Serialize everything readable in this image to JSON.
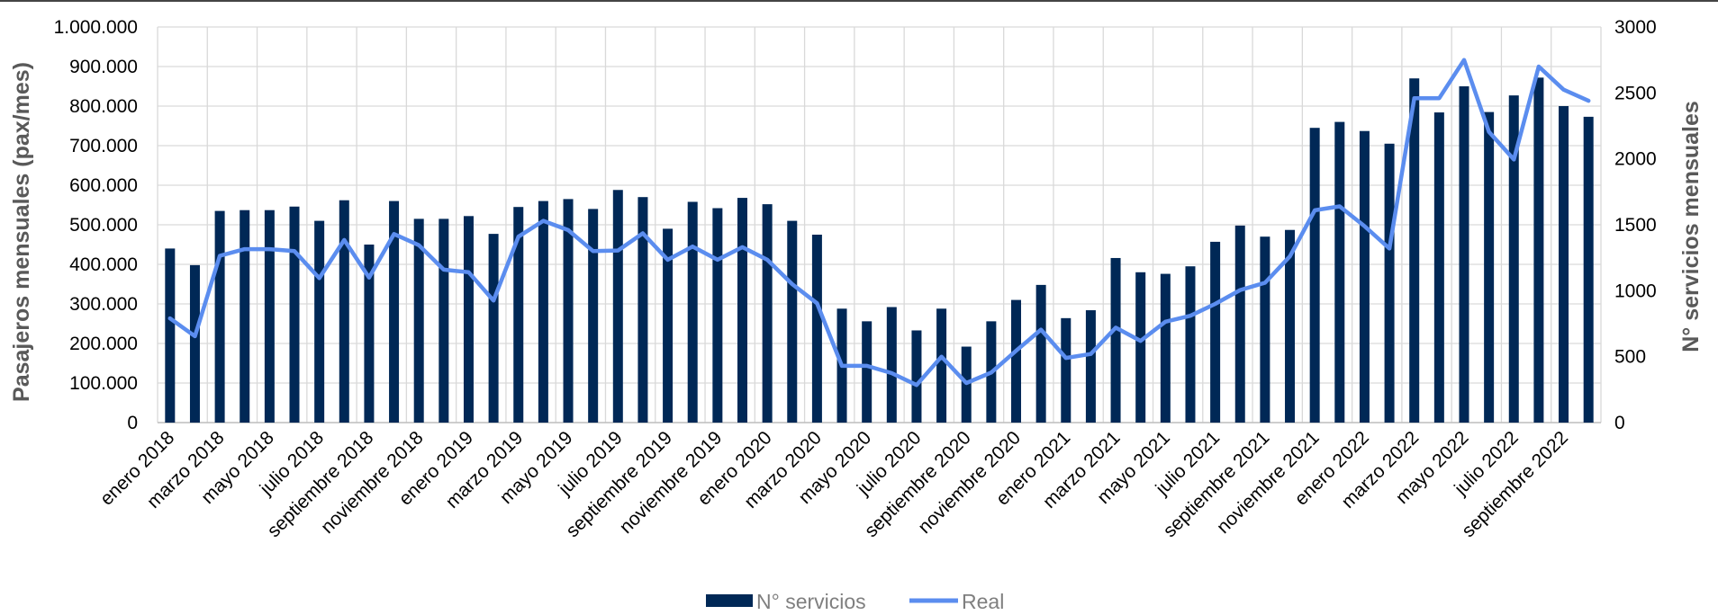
{
  "chart_data": {
    "type": "bar+line",
    "x": [
      "enero 2018",
      "febrero 2018",
      "marzo 2018",
      "abril 2018",
      "mayo 2018",
      "junio 2018",
      "julio 2018",
      "agosto 2018",
      "septiembre 2018",
      "octubre 2018",
      "noviembre 2018",
      "diciembre 2018",
      "enero 2019",
      "febrero 2019",
      "marzo 2019",
      "abril 2019",
      "mayo 2019",
      "junio 2019",
      "julio 2019",
      "agosto 2019",
      "septiembre 2019",
      "octubre 2019",
      "noviembre 2019",
      "diciembre 2019",
      "enero 2020",
      "febrero 2020",
      "marzo 2020",
      "abril 2020",
      "mayo 2020",
      "junio 2020",
      "julio 2020",
      "agosto 2020",
      "septiembre 2020",
      "octubre 2020",
      "noviembre 2020",
      "diciembre 2020",
      "enero 2021",
      "febrero 2021",
      "marzo 2021",
      "abril 2021",
      "mayo 2021",
      "junio 2021",
      "julio 2021",
      "agosto 2021",
      "septiembre 2021",
      "octubre 2021",
      "noviembre 2021",
      "diciembre 2021",
      "enero 2022",
      "febrero 2022",
      "marzo 2022",
      "abril 2022",
      "mayo 2022",
      "junio 2022",
      "julio 2022",
      "agosto 2022",
      "septiembre 2022",
      "octubre 2022"
    ],
    "x_tick_labels": [
      "enero 2018",
      "marzo 2018",
      "mayo 2018",
      "julio 2018",
      "septiembre 2018",
      "noviembre 2018",
      "enero 2019",
      "marzo 2019",
      "mayo 2019",
      "julio 2019",
      "septiembre 2019",
      "noviembre 2019",
      "enero 2020",
      "marzo 2020",
      "mayo 2020",
      "julio 2020",
      "septiembre 2020",
      "noviembre 2020",
      "enero 2021",
      "marzo 2021",
      "mayo 2021",
      "julio 2021",
      "septiembre 2021",
      "noviembre 2021",
      "enero 2022",
      "marzo 2022",
      "mayo 2022",
      "julio 2022",
      "septiembre 2022"
    ],
    "series": [
      {
        "name": "N° servicios",
        "type": "bar",
        "axis": "left",
        "color": "#002856",
        "values": [
          440000,
          398000,
          535000,
          537000,
          537000,
          546000,
          510000,
          562000,
          450000,
          560000,
          515000,
          515000,
          522000,
          477000,
          545000,
          560000,
          565000,
          540000,
          588000,
          570000,
          490000,
          558000,
          542000,
          568000,
          552000,
          510000,
          475000,
          288000,
          256000,
          292000,
          233000,
          288000,
          192000,
          256000,
          310000,
          348000,
          264000,
          284000,
          416000,
          380000,
          376000,
          395000,
          457000,
          498000,
          470000,
          487000,
          745000,
          760000,
          737000,
          705000,
          870000,
          784000,
          850000,
          785000,
          827000,
          872000,
          800000,
          773000
        ]
      },
      {
        "name": "Real",
        "type": "line",
        "axis": "right",
        "color": "#5b8def",
        "values": [
          790,
          655,
          1265,
          1315,
          1315,
          1300,
          1095,
          1385,
          1100,
          1430,
          1345,
          1160,
          1140,
          925,
          1410,
          1530,
          1460,
          1300,
          1305,
          1435,
          1235,
          1335,
          1235,
          1330,
          1235,
          1050,
          905,
          430,
          430,
          375,
          285,
          500,
          300,
          380,
          545,
          705,
          490,
          520,
          720,
          620,
          765,
          810,
          900,
          1005,
          1060,
          1260,
          1610,
          1640,
          1490,
          1320,
          2460,
          2460,
          2750,
          2205,
          1995,
          2700,
          2525,
          2440
        ]
      }
    ],
    "ylabel": "Pasajeros mensuales (pax/mes)",
    "y_ticks": [
      "1.000.000",
      "900.000",
      "800.000",
      "700.000",
      "600.000",
      "500.000",
      "400.000",
      "300.000",
      "200.000",
      "100.000",
      "0"
    ],
    "ylim": [
      0,
      1000000
    ],
    "y2label": "N° servicios mensuales",
    "y2_ticks": [
      "3000",
      "2500",
      "2000",
      "1500",
      "1000",
      "500",
      "0"
    ],
    "y2lim": [
      0,
      3000
    ],
    "grid": true,
    "legend": {
      "position": "bottom-center",
      "items": [
        {
          "label": "N° servicios",
          "color": "#002856",
          "kind": "bar"
        },
        {
          "label": "Real",
          "color": "#5b8def",
          "kind": "line"
        }
      ]
    }
  }
}
